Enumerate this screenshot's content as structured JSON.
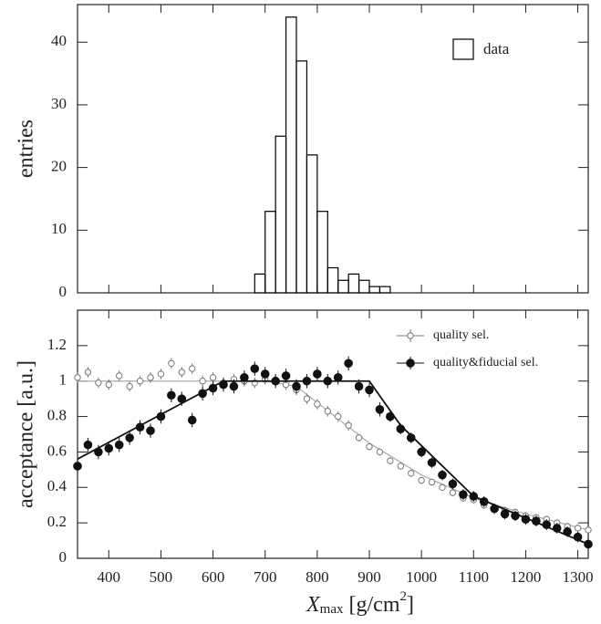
{
  "chart_data": [
    {
      "type": "histogram",
      "ylabel": "entries",
      "bins": [
        680,
        700,
        720,
        740,
        760,
        780,
        800,
        820,
        840,
        860,
        880,
        900,
        920,
        940
      ],
      "values": [
        3,
        13,
        25,
        44,
        37,
        22,
        13,
        4,
        2,
        3,
        2,
        1,
        1
      ],
      "xlim": [
        340,
        1320
      ],
      "xticks": [
        400,
        500,
        600,
        700,
        800,
        900,
        1000,
        1100,
        1200,
        1300
      ],
      "ylim": [
        0,
        46
      ],
      "yticks": [
        0,
        10,
        20,
        30,
        40
      ],
      "legend": {
        "label": "data",
        "corner": "upper right"
      },
      "color": "#000000"
    },
    {
      "type": "scatter",
      "ylabel": "acceptance [a.u.]",
      "xlabel": {
        "symbol": "X",
        "subscript": "max",
        "unit": "[g/cm",
        "superscript": "2",
        "close": "]"
      },
      "xlim": [
        340,
        1320
      ],
      "xticks": [
        400,
        500,
        600,
        700,
        800,
        900,
        1000,
        1100,
        1200,
        1300
      ],
      "ylim": [
        0,
        1.4
      ],
      "yticks": [
        0,
        0.2,
        0.4,
        0.6,
        0.8,
        1,
        1.2
      ],
      "legend_corner": "upper right",
      "x": [
        340,
        360,
        380,
        400,
        420,
        440,
        460,
        480,
        500,
        520,
        540,
        560,
        580,
        600,
        620,
        640,
        660,
        680,
        700,
        720,
        740,
        760,
        780,
        800,
        820,
        840,
        860,
        880,
        900,
        920,
        940,
        960,
        980,
        1000,
        1020,
        1040,
        1060,
        1080,
        1100,
        1120,
        1140,
        1160,
        1180,
        1200,
        1220,
        1240,
        1260,
        1280,
        1300,
        1320
      ],
      "series": [
        {
          "name": "quality sel.",
          "color": "#777777",
          "filled": false,
          "values": [
            1.02,
            1.05,
            0.99,
            0.98,
            1.03,
            0.97,
            1.0,
            1.02,
            1.04,
            1.1,
            1.05,
            1.07,
            1.0,
            1.02,
            0.99,
            1.01,
            1.0,
            0.99,
            1.01,
            1.0,
            0.98,
            0.95,
            0.9,
            0.87,
            0.83,
            0.8,
            0.75,
            0.68,
            0.63,
            0.6,
            0.55,
            0.52,
            0.48,
            0.44,
            0.43,
            0.4,
            0.37,
            0.34,
            0.33,
            0.3,
            0.28,
            0.27,
            0.26,
            0.24,
            0.23,
            0.22,
            0.2,
            0.18,
            0.17,
            0.16
          ],
          "errors": [
            0.03,
            0.03,
            0.03,
            0.03,
            0.03,
            0.03,
            0.03,
            0.03,
            0.03,
            0.03,
            0.03,
            0.03,
            0.03,
            0.03,
            0.03,
            0.03,
            0.03,
            0.03,
            0.03,
            0.03,
            0.03,
            0.03,
            0.03,
            0.03,
            0.03,
            0.03,
            0.03,
            0.02,
            0.02,
            0.02,
            0.02,
            0.02,
            0.02,
            0.02,
            0.02,
            0.02,
            0.02,
            0.02,
            0.02,
            0.02,
            0.02,
            0.02,
            0.02,
            0.02,
            0.02,
            0.02,
            0.02,
            0.02,
            0.02,
            0.02
          ],
          "fit": {
            "x": [
              340,
              700,
              760,
              900,
              1000,
              1100,
              1200,
              1320
            ],
            "values": [
              1.0,
              1.0,
              0.97,
              0.65,
              0.47,
              0.34,
              0.25,
              0.16
            ]
          }
        },
        {
          "name": "quality&fiducial sel.",
          "color": "#111111",
          "filled": true,
          "values": [
            0.52,
            0.64,
            0.6,
            0.62,
            0.64,
            0.68,
            0.74,
            0.72,
            0.8,
            0.92,
            0.9,
            0.78,
            0.93,
            0.96,
            0.98,
            0.97,
            1.02,
            1.07,
            1.04,
            1.0,
            1.03,
            0.97,
            1.0,
            1.04,
            1.0,
            1.02,
            1.1,
            0.97,
            0.95,
            0.84,
            0.8,
            0.73,
            0.68,
            0.6,
            0.54,
            0.47,
            0.42,
            0.36,
            0.35,
            0.32,
            0.28,
            0.25,
            0.24,
            0.22,
            0.21,
            0.19,
            0.17,
            0.15,
            0.12,
            0.08
          ],
          "errors": [
            0.04,
            0.04,
            0.04,
            0.04,
            0.04,
            0.04,
            0.04,
            0.04,
            0.04,
            0.04,
            0.04,
            0.04,
            0.04,
            0.04,
            0.04,
            0.04,
            0.04,
            0.04,
            0.04,
            0.04,
            0.04,
            0.04,
            0.04,
            0.04,
            0.04,
            0.04,
            0.04,
            0.04,
            0.04,
            0.04,
            0.03,
            0.03,
            0.03,
            0.03,
            0.03,
            0.03,
            0.03,
            0.03,
            0.03,
            0.03,
            0.03,
            0.03,
            0.03,
            0.03,
            0.03,
            0.03,
            0.03,
            0.03,
            0.03,
            0.03
          ],
          "fit": {
            "x": [
              340,
              620,
              900,
              960,
              1100,
              1320
            ],
            "values": [
              0.56,
              1.0,
              1.0,
              0.75,
              0.35,
              0.08
            ]
          }
        }
      ]
    }
  ]
}
